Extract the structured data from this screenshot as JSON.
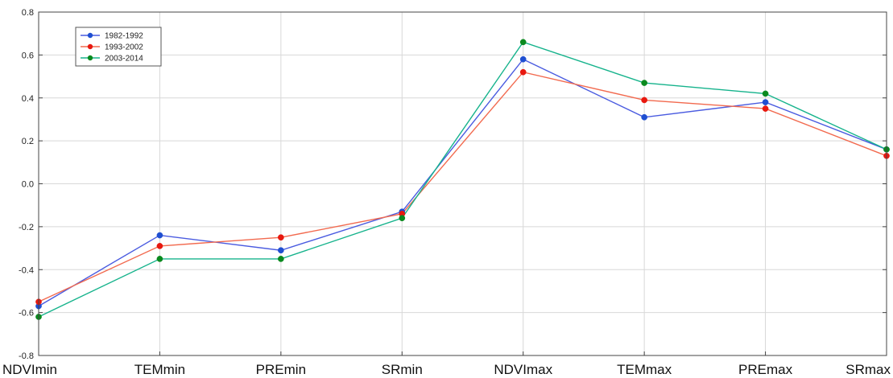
{
  "chart_data": {
    "type": "line",
    "categories": [
      "NDVImin",
      "TEMmin",
      "PREmin",
      "SRmin",
      "NDVImax",
      "TEMmax",
      "PREmax",
      "SRmax"
    ],
    "series": [
      {
        "name": "1982-1992",
        "color": "#4a5be0",
        "marker": "#1f4fd1",
        "values": [
          -0.57,
          -0.24,
          -0.31,
          -0.13,
          0.58,
          0.31,
          0.38,
          0.16
        ]
      },
      {
        "name": "1993-2002",
        "color": "#f26a4f",
        "marker": "#e8180f",
        "values": [
          -0.55,
          -0.29,
          -0.25,
          -0.14,
          0.52,
          0.39,
          0.35,
          0.13
        ]
      },
      {
        "name": "2003-2014",
        "color": "#16b38c",
        "marker": "#0a8a1e",
        "values": [
          -0.62,
          -0.35,
          -0.35,
          -0.16,
          0.66,
          0.47,
          0.42,
          0.16
        ]
      }
    ],
    "ylim": [
      -0.8,
      0.8
    ],
    "yticks": [
      "0.8",
      "0.6",
      "0.4",
      "0.2",
      "0.0",
      "-0.2",
      "-0.4",
      "-0.6",
      "-0.8"
    ],
    "grid": true,
    "legend_position": "top-left"
  }
}
